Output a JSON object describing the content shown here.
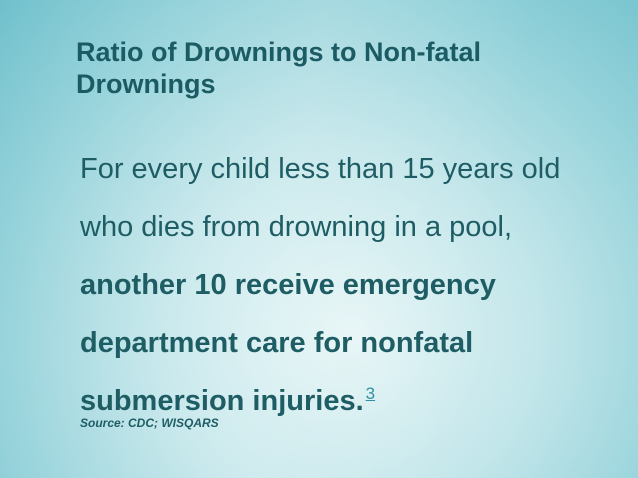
{
  "slide": {
    "title": "Ratio of Drownings to Non-fatal Drownings",
    "body": {
      "plain": "For every child less than 15 years old who dies from drowning in a pool, ",
      "bold": "another 10 receive emergency department care for nonfatal submersion injuries.",
      "footnote": "3"
    },
    "source": "Source:  CDC; WISQARS"
  },
  "colors": {
    "text": "#1f5d65",
    "footnote_link": "#2f8fa3",
    "background": "#c2e6ea"
  }
}
